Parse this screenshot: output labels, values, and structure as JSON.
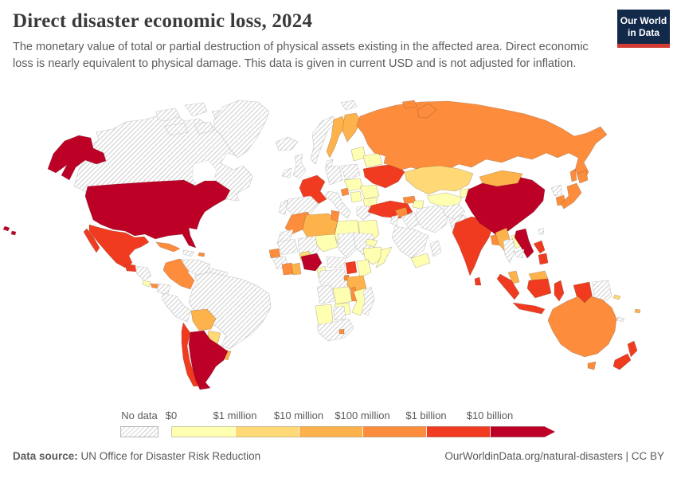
{
  "header": {
    "title": "Direct disaster economic loss, 2024",
    "subtitle": "The monetary value of total or partial destruction of physical assets existing in the affected area. Direct economic loss is nearly equivalent to physical damage. This data is given in current USD and is not adjusted for inflation.",
    "logo": {
      "line1": "Our World",
      "line2": "in Data",
      "bg_color": "#12294a",
      "accent_color": "#d13b32"
    }
  },
  "footer": {
    "source_label": "Data source:",
    "source_text": " UN Office for Disaster Risk Reduction",
    "right_text": "OurWorldinData.org/natural-disasters | CC BY"
  },
  "chart_data": {
    "type": "choropleth_map",
    "title": "Direct disaster economic loss, 2024",
    "unit": "current USD",
    "legend": {
      "no_data_label": "No data",
      "no_data_pattern": "diagonal-hatch",
      "bins": [
        {
          "key": "0",
          "label": "$0",
          "color": "#ffffb2"
        },
        {
          "key": "1m",
          "label": "$1 million",
          "color": "#fed976"
        },
        {
          "key": "10m",
          "label": "$10 million",
          "color": "#feb24c"
        },
        {
          "key": "100m",
          "label": "$100 million",
          "color": "#fd8d3c"
        },
        {
          "key": "1b",
          "label": "$1 billion",
          "color": "#f03b20"
        },
        {
          "key": "10b",
          "label": "$10 billion",
          "color": "#bd0026"
        }
      ]
    },
    "countries": [
      {
        "id": "united-states",
        "name": "United States",
        "category": "10b"
      },
      {
        "id": "china",
        "name": "China",
        "category": "10b"
      },
      {
        "id": "argentina",
        "name": "Argentina",
        "category": "10b"
      },
      {
        "id": "nigeria",
        "name": "Nigeria",
        "category": "10b"
      },
      {
        "id": "vietnam",
        "name": "Vietnam",
        "category": "10b"
      },
      {
        "id": "mexico",
        "name": "Mexico",
        "category": "1b"
      },
      {
        "id": "guatemala",
        "name": "Guatemala",
        "category": "1b"
      },
      {
        "id": "chile",
        "name": "Chile",
        "category": "1b"
      },
      {
        "id": "france",
        "name": "France",
        "category": "1b"
      },
      {
        "id": "ukraine",
        "name": "Ukraine",
        "category": "1b"
      },
      {
        "id": "turkey",
        "name": "Turkey",
        "category": "1b"
      },
      {
        "id": "india",
        "name": "India",
        "category": "1b"
      },
      {
        "id": "sri-lanka",
        "name": "Sri Lanka",
        "category": "1b"
      },
      {
        "id": "uganda",
        "name": "Uganda",
        "category": "1b"
      },
      {
        "id": "philippines",
        "name": "Philippines",
        "category": "1b"
      },
      {
        "id": "indonesia",
        "name": "Indonesia",
        "category": "1b"
      },
      {
        "id": "new-zealand",
        "name": "New Zealand",
        "category": "1b"
      },
      {
        "id": "cuba",
        "name": "Cuba",
        "category": "100m"
      },
      {
        "id": "panama",
        "name": "Panama",
        "category": "100m"
      },
      {
        "id": "puerto-rico",
        "name": "Puerto Rico",
        "category": "100m"
      },
      {
        "id": "colombia",
        "name": "Colombia",
        "category": "100m"
      },
      {
        "id": "morocco",
        "name": "Morocco",
        "category": "100m"
      },
      {
        "id": "senegal",
        "name": "Senegal",
        "category": "100m"
      },
      {
        "id": "cote-divoire",
        "name": "Cote d'Ivoire",
        "category": "100m"
      },
      {
        "id": "tunisia",
        "name": "Tunisia",
        "category": "100m"
      },
      {
        "id": "syria",
        "name": "Syria",
        "category": "100m"
      },
      {
        "id": "georgia",
        "name": "Georgia",
        "category": "100m"
      },
      {
        "id": "russia",
        "name": "Russia",
        "category": "100m"
      },
      {
        "id": "japan",
        "name": "Japan",
        "category": "100m"
      },
      {
        "id": "south-korea",
        "name": "South Korea",
        "category": "100m"
      },
      {
        "id": "australia",
        "name": "Australia",
        "category": "100m"
      },
      {
        "id": "bangladesh",
        "name": "Bangladesh",
        "category": "100m"
      },
      {
        "id": "rwanda",
        "name": "Rwanda",
        "category": "100m"
      },
      {
        "id": "malawi",
        "name": "Malawi",
        "category": "100m"
      },
      {
        "id": "lesotho",
        "name": "Lesotho",
        "category": "100m"
      },
      {
        "id": "slovenia",
        "name": "Slovenia",
        "category": "100m"
      },
      {
        "id": "bolivia",
        "name": "Bolivia",
        "category": "10m"
      },
      {
        "id": "uruguay",
        "name": "Uruguay",
        "category": "10m"
      },
      {
        "id": "sweden",
        "name": "Sweden",
        "category": "10m"
      },
      {
        "id": "finland",
        "name": "Finland",
        "category": "10m"
      },
      {
        "id": "algeria",
        "name": "Algeria",
        "category": "10m"
      },
      {
        "id": "ghana",
        "name": "Ghana",
        "category": "10m"
      },
      {
        "id": "tanzania",
        "name": "Tanzania",
        "category": "10m"
      },
      {
        "id": "mongolia",
        "name": "Mongolia",
        "category": "10m"
      },
      {
        "id": "myanmar",
        "name": "Myanmar",
        "category": "10m"
      },
      {
        "id": "malaysia",
        "name": "Malaysia",
        "category": "10m"
      },
      {
        "id": "fiji",
        "name": "Fiji",
        "category": "10m"
      },
      {
        "id": "paraguay",
        "name": "Paraguay",
        "category": "1m"
      },
      {
        "id": "kazakhstan",
        "name": "Kazakhstan",
        "category": "1m"
      },
      {
        "id": "burkina-faso",
        "name": "Burkina Faso",
        "category": "1m"
      },
      {
        "id": "solomon-islands",
        "name": "Solomon Islands",
        "category": "1m"
      },
      {
        "id": "costa-rica",
        "name": "Costa Rica",
        "category": "0"
      },
      {
        "id": "baltic-states",
        "name": "Baltic States",
        "category": "0"
      },
      {
        "id": "belarus",
        "name": "Belarus",
        "category": "0"
      },
      {
        "id": "hungary",
        "name": "Hungary",
        "category": "0"
      },
      {
        "id": "serbia",
        "name": "Serbia",
        "category": "0"
      },
      {
        "id": "romania",
        "name": "Romania",
        "category": "0"
      },
      {
        "id": "bulgaria",
        "name": "Bulgaria",
        "category": "0"
      },
      {
        "id": "azerbaijan",
        "name": "Azerbaijan",
        "category": "0"
      },
      {
        "id": "uzbekistan",
        "name": "Uzbekistan",
        "category": "0"
      },
      {
        "id": "kyrgyzstan",
        "name": "Kyrgyzstan",
        "category": "0"
      },
      {
        "id": "yemen",
        "name": "Yemen",
        "category": "0"
      },
      {
        "id": "libya",
        "name": "Libya",
        "category": "0"
      },
      {
        "id": "egypt",
        "name": "Egypt",
        "category": "0"
      },
      {
        "id": "niger",
        "name": "Niger",
        "category": "0"
      },
      {
        "id": "cameroon",
        "name": "Cameroon",
        "category": "0"
      },
      {
        "id": "eritrea",
        "name": "Eritrea",
        "category": "0"
      },
      {
        "id": "ethiopia",
        "name": "Ethiopia",
        "category": "0"
      },
      {
        "id": "somalia",
        "name": "Somalia",
        "category": "0"
      },
      {
        "id": "kenya",
        "name": "Kenya",
        "category": "0"
      },
      {
        "id": "zambia",
        "name": "Zambia",
        "category": "0"
      },
      {
        "id": "mozambique",
        "name": "Mozambique",
        "category": "0"
      },
      {
        "id": "zimbabwe",
        "name": "Zimbabwe",
        "category": "0"
      },
      {
        "id": "namibia",
        "name": "Namibia",
        "category": "0"
      },
      {
        "id": "laos",
        "name": "Laos",
        "category": "0"
      },
      {
        "id": "canada",
        "name": "Canada",
        "category": "no-data"
      },
      {
        "id": "greenland",
        "name": "Greenland",
        "category": "no-data"
      },
      {
        "id": "honduras",
        "name": "Honduras",
        "category": "no-data"
      },
      {
        "id": "haiti",
        "name": "Haiti",
        "category": "no-data"
      },
      {
        "id": "venezuela",
        "name": "Venezuela",
        "category": "no-data"
      },
      {
        "id": "guyana",
        "name": "Guyana",
        "category": "no-data"
      },
      {
        "id": "ecuador",
        "name": "Ecuador",
        "category": "no-data"
      },
      {
        "id": "peru",
        "name": "Peru",
        "category": "no-data"
      },
      {
        "id": "brazil",
        "name": "Brazil",
        "category": "no-data"
      },
      {
        "id": "iceland",
        "name": "Iceland",
        "category": "no-data"
      },
      {
        "id": "united-kingdom",
        "name": "United Kingdom",
        "category": "no-data"
      },
      {
        "id": "ireland",
        "name": "Ireland",
        "category": "no-data"
      },
      {
        "id": "norway",
        "name": "Norway",
        "category": "no-data"
      },
      {
        "id": "denmark",
        "name": "Denmark",
        "category": "no-data"
      },
      {
        "id": "poland",
        "name": "Poland",
        "category": "no-data"
      },
      {
        "id": "germany",
        "name": "Germany",
        "category": "no-data"
      },
      {
        "id": "spain",
        "name": "Spain",
        "category": "no-data"
      },
      {
        "id": "portugal",
        "name": "Portugal",
        "category": "no-data"
      },
      {
        "id": "italy",
        "name": "Italy",
        "category": "no-data"
      },
      {
        "id": "greece",
        "name": "Greece",
        "category": "no-data"
      },
      {
        "id": "western-sahara",
        "name": "Western Sahara",
        "category": "no-data"
      },
      {
        "id": "mauritania",
        "name": "Mauritania",
        "category": "no-data"
      },
      {
        "id": "guinea",
        "name": "Guinea",
        "category": "no-data"
      },
      {
        "id": "mali",
        "name": "Mali",
        "category": "no-data"
      },
      {
        "id": "chad",
        "name": "Chad",
        "category": "no-data"
      },
      {
        "id": "sudan",
        "name": "Sudan",
        "category": "no-data"
      },
      {
        "id": "central-african-republic",
        "name": "Central African Republic",
        "category": "no-data"
      },
      {
        "id": "dr-congo",
        "name": "Democratic Republic of Congo",
        "category": "no-data"
      },
      {
        "id": "angola",
        "name": "Angola",
        "category": "no-data"
      },
      {
        "id": "botswana",
        "name": "Botswana",
        "category": "no-data"
      },
      {
        "id": "south-africa",
        "name": "South Africa",
        "category": "no-data"
      },
      {
        "id": "madagascar",
        "name": "Madagascar",
        "category": "no-data"
      },
      {
        "id": "iraq",
        "name": "Iraq",
        "category": "no-data"
      },
      {
        "id": "iran",
        "name": "Iran",
        "category": "no-data"
      },
      {
        "id": "saudi-arabia",
        "name": "Saudi Arabia",
        "category": "no-data"
      },
      {
        "id": "oman",
        "name": "Oman",
        "category": "no-data"
      },
      {
        "id": "jordan",
        "name": "Jordan",
        "category": "no-data"
      },
      {
        "id": "afghanistan",
        "name": "Afghanistan",
        "category": "no-data"
      },
      {
        "id": "pakistan",
        "name": "Pakistan",
        "category": "no-data"
      },
      {
        "id": "thailand",
        "name": "Thailand",
        "category": "no-data"
      },
      {
        "id": "cambodia",
        "name": "Cambodia",
        "category": "no-data"
      },
      {
        "id": "north-korea",
        "name": "North Korea",
        "category": "no-data"
      },
      {
        "id": "taiwan",
        "name": "Taiwan",
        "category": "no-data"
      },
      {
        "id": "papua-new-guinea",
        "name": "Papua New Guinea",
        "category": "no-data"
      },
      {
        "id": "new-caledonia",
        "name": "New Caledonia",
        "category": "no-data"
      }
    ]
  }
}
